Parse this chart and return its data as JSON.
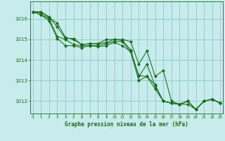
{
  "title": "Graphe pression niveau de la mer (hPa)",
  "bg_color": "#c8ecec",
  "grid_color": "#88cccc",
  "line_color": "#1a6b1a",
  "marker_color": "#1a6b1a",
  "xlim": [
    -0.3,
    23.3
  ],
  "ylim": [
    1011.4,
    1016.85
  ],
  "yticks": [
    1012,
    1013,
    1014,
    1015,
    1016
  ],
  "xticks": [
    0,
    1,
    2,
    3,
    4,
    5,
    6,
    7,
    8,
    9,
    10,
    11,
    12,
    13,
    14,
    15,
    16,
    17,
    18,
    19,
    20,
    21,
    22,
    23
  ],
  "series": [
    [
      1016.35,
      1016.35,
      1016.1,
      1015.6,
      1015.05,
      1015.05,
      1014.75,
      1014.8,
      1014.8,
      1014.85,
      1015.0,
      1014.95,
      1014.5,
      1013.2,
      1013.8,
      1012.75,
      1012.0,
      1011.9,
      1011.85,
      1012.0,
      1011.6,
      1012.0,
      1012.1,
      1011.9
    ],
    [
      1016.35,
      1016.3,
      1016.05,
      1015.8,
      1015.1,
      1015.0,
      1014.75,
      1014.8,
      1014.8,
      1015.0,
      1015.0,
      1015.0,
      1014.9,
      1013.8,
      1014.45,
      1013.2,
      1013.5,
      1012.0,
      1011.85,
      1011.85,
      1011.6,
      1012.0,
      1012.1,
      1011.9
    ],
    [
      1016.35,
      1016.2,
      1016.0,
      1015.15,
      1015.0,
      1014.75,
      1014.7,
      1014.7,
      1014.7,
      1014.8,
      1014.9,
      1014.9,
      1014.4,
      1013.25,
      1013.2,
      1012.8,
      1012.0,
      1011.9,
      1011.85,
      1012.0,
      1011.6,
      1012.0,
      1012.1,
      1011.9
    ],
    [
      1016.35,
      1016.2,
      1015.9,
      1015.05,
      1014.7,
      1014.7,
      1014.6,
      1014.7,
      1014.65,
      1014.7,
      1014.85,
      1014.7,
      1014.4,
      1013.0,
      1013.2,
      1012.6,
      1012.0,
      1011.9,
      1011.85,
      1012.0,
      1011.6,
      1012.0,
      1012.1,
      1011.9
    ]
  ]
}
